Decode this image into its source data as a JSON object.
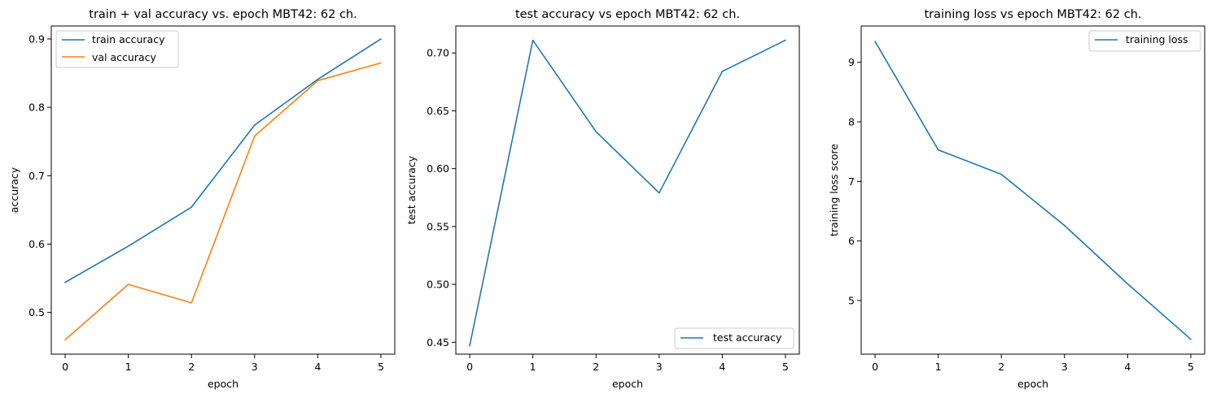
{
  "chart_data": [
    {
      "type": "line",
      "title": "train + val accuracy vs. epoch MBT42: 62 ch.",
      "xlabel": "epoch",
      "ylabel": "accuracy",
      "x": [
        0,
        1,
        2,
        3,
        4,
        5
      ],
      "xlim": [
        -0.22,
        5.22
      ],
      "ylim": [
        0.439,
        0.919
      ],
      "xticks": [
        0,
        1,
        2,
        3,
        4,
        5
      ],
      "yticks": [
        0.5,
        0.6,
        0.7,
        0.8,
        0.9
      ],
      "ytick_labels": [
        "0.5",
        "0.6",
        "0.7",
        "0.8",
        "0.9"
      ],
      "grid": false,
      "legend_position": "top-left",
      "series": [
        {
          "name": "train accuracy",
          "color": "#1f77b4",
          "values": [
            0.544,
            0.597,
            0.654,
            0.774,
            0.841,
            0.9
          ]
        },
        {
          "name": "val accuracy",
          "color": "#ff7f0e",
          "values": [
            0.46,
            0.541,
            0.514,
            0.758,
            0.839,
            0.865
          ]
        }
      ]
    },
    {
      "type": "line",
      "title": "test accuracy vs epoch MBT42: 62 ch.",
      "xlabel": "epoch",
      "ylabel": "test accuracy",
      "x": [
        0,
        1,
        2,
        3,
        4,
        5
      ],
      "xlim": [
        -0.22,
        5.22
      ],
      "ylim": [
        0.4397,
        0.7233
      ],
      "xticks": [
        0,
        1,
        2,
        3,
        4,
        5
      ],
      "yticks": [
        0.45,
        0.5,
        0.55,
        0.6,
        0.65,
        0.7
      ],
      "ytick_labels": [
        "0.45",
        "0.50",
        "0.55",
        "0.60",
        "0.65",
        "0.70"
      ],
      "grid": false,
      "legend_position": "bottom-right",
      "series": [
        {
          "name": "test accuracy",
          "color": "#1f77b4",
          "values": [
            0.447,
            0.711,
            0.632,
            0.579,
            0.684,
            0.711
          ]
        }
      ]
    },
    {
      "type": "line",
      "title": "training loss vs epoch MBT42: 62 ch.",
      "xlabel": "epoch",
      "ylabel": "training loss score",
      "x": [
        0,
        1,
        2,
        3,
        4,
        5
      ],
      "xlim": [
        -0.22,
        5.22
      ],
      "ylim": [
        4.1,
        9.61
      ],
      "xticks": [
        0,
        1,
        2,
        3,
        4,
        5
      ],
      "yticks": [
        5,
        6,
        7,
        8,
        9
      ],
      "ytick_labels": [
        "5",
        "6",
        "7",
        "8",
        "9"
      ],
      "grid": false,
      "legend_position": "top-right",
      "series": [
        {
          "name": "training loss",
          "color": "#1f77b4",
          "values": [
            9.35,
            7.53,
            7.12,
            6.26,
            5.28,
            4.35
          ]
        }
      ]
    }
  ]
}
